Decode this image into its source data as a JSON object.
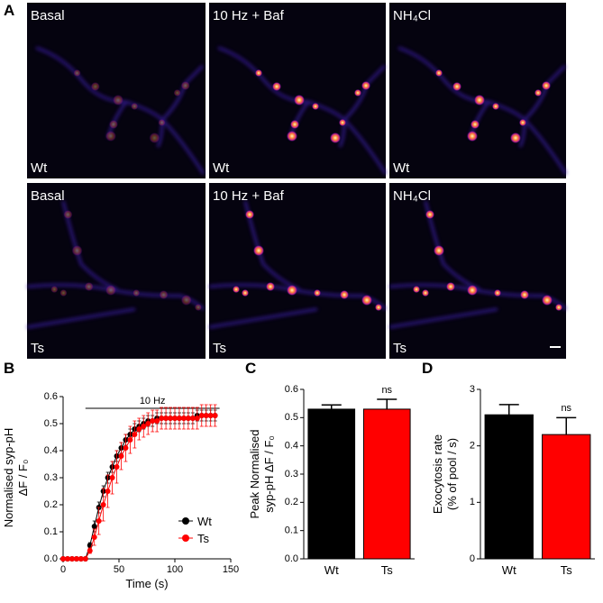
{
  "panel_labels": [
    "A",
    "B",
    "C",
    "D"
  ],
  "images": [
    {
      "condition": "Basal",
      "genotype": "Wt"
    },
    {
      "condition": "10 Hz + Baf",
      "genotype": "Wt"
    },
    {
      "condition": "NH₄Cl",
      "genotype": "Wt"
    },
    {
      "condition": "Basal",
      "genotype": "Ts"
    },
    {
      "condition": "10 Hz + Baf",
      "genotype": "Ts"
    },
    {
      "condition": "NH₄Cl",
      "genotype": "Ts"
    }
  ],
  "chart_data": [
    {
      "type": "line",
      "xlabel": "Time (s)",
      "ylabel": [
        "Normalised syp-pH",
        "ΔF / F₀"
      ],
      "stimulus": {
        "label": "10 Hz",
        "x": [
          20,
          140
        ]
      },
      "x": [
        0,
        4,
        8,
        12,
        16,
        20,
        24,
        28,
        32,
        36,
        40,
        44,
        48,
        52,
        56,
        60,
        64,
        68,
        72,
        76,
        80,
        84,
        88,
        92,
        96,
        100,
        104,
        108,
        112,
        116,
        120,
        124,
        128,
        132,
        136
      ],
      "series": [
        {
          "name": "Wt",
          "color": "#000000",
          "values": [
            0,
            0,
            0,
            0,
            0,
            0,
            0.05,
            0.12,
            0.19,
            0.25,
            0.3,
            0.34,
            0.38,
            0.41,
            0.44,
            0.46,
            0.48,
            0.49,
            0.5,
            0.51,
            0.51,
            0.52,
            0.52,
            0.52,
            0.52,
            0.52,
            0.52,
            0.52,
            0.52,
            0.52,
            0.53,
            0.53,
            0.53,
            0.53,
            0.53
          ],
          "errors": [
            0,
            0,
            0,
            0,
            0,
            0,
            0.01,
            0.02,
            0.02,
            0.02,
            0.02,
            0.02,
            0.02,
            0.02,
            0.02,
            0.02,
            0.02,
            0.02,
            0.02,
            0.02,
            0.02,
            0.02,
            0.02,
            0.02,
            0.02,
            0.02,
            0.02,
            0.02,
            0.02,
            0.02,
            0.02,
            0.02,
            0.02,
            0.02,
            0.02
          ]
        },
        {
          "name": "Ts",
          "color": "#ff0000",
          "values": [
            0,
            0,
            0,
            0,
            0,
            0,
            0.03,
            0.08,
            0.14,
            0.2,
            0.25,
            0.3,
            0.34,
            0.38,
            0.41,
            0.44,
            0.46,
            0.48,
            0.49,
            0.5,
            0.51,
            0.51,
            0.52,
            0.52,
            0.52,
            0.52,
            0.52,
            0.52,
            0.52,
            0.52,
            0.52,
            0.53,
            0.53,
            0.53,
            0.53
          ],
          "errors": [
            0,
            0,
            0,
            0,
            0,
            0,
            0.01,
            0.03,
            0.05,
            0.06,
            0.06,
            0.06,
            0.06,
            0.05,
            0.05,
            0.05,
            0.05,
            0.04,
            0.04,
            0.04,
            0.04,
            0.04,
            0.04,
            0.04,
            0.04,
            0.04,
            0.04,
            0.04,
            0.04,
            0.04,
            0.04,
            0.04,
            0.04,
            0.04,
            0.04
          ]
        }
      ],
      "xlim": [
        0,
        150
      ],
      "xticks": [
        0,
        50,
        100,
        150
      ],
      "ylim": [
        0,
        0.6
      ],
      "yticks": [
        {
          "value": 0,
          "label": "0.0"
        },
        0.1,
        0.2,
        0.3,
        0.4,
        0.5,
        0.6
      ],
      "legend": "lower-right"
    },
    {
      "type": "bar",
      "ylabel": [
        "Peak Normalised",
        "syp-pH ΔF / F₀"
      ],
      "categories": [
        "Wt",
        "Ts"
      ],
      "values": [
        0.53,
        0.53
      ],
      "errors": [
        0.015,
        0.035
      ],
      "colors": [
        "#000000",
        "#ff0000"
      ],
      "annotations": [
        {
          "label": "ns",
          "category": "Ts"
        }
      ],
      "ylim": [
        0,
        0.6
      ],
      "yticks": [
        {
          "value": 0,
          "label": "0.0"
        },
        0.1,
        0.2,
        0.3,
        0.4,
        0.5,
        0.6
      ]
    },
    {
      "type": "bar",
      "ylabel": [
        "Exocytosis rate",
        "(% of pool / s)"
      ],
      "categories": [
        "Wt",
        "Ts"
      ],
      "values": [
        2.55,
        2.2
      ],
      "errors": [
        0.18,
        0.3
      ],
      "colors": [
        "#000000",
        "#ff0000"
      ],
      "annotations": [
        {
          "label": "ns",
          "category": "Ts"
        }
      ],
      "ylim": [
        0,
        3
      ],
      "yticks": [
        0,
        1,
        2,
        3
      ]
    }
  ]
}
